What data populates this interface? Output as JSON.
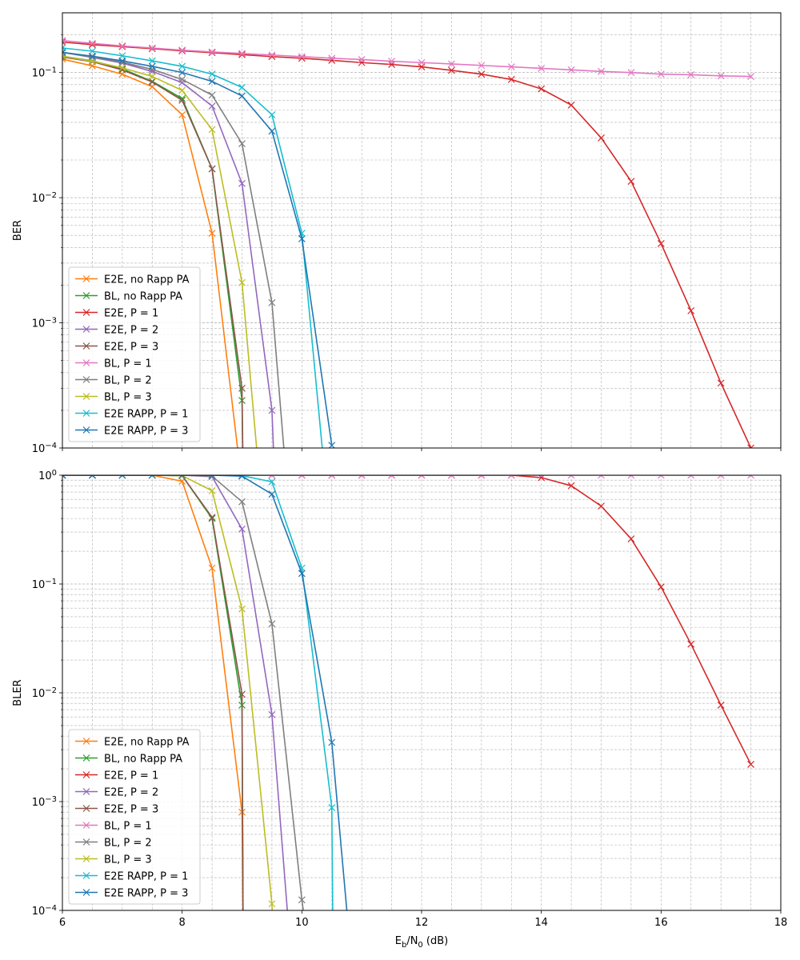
{
  "colors": {
    "e2e_no_rapp": "#ff7f0e",
    "bl_no_rapp": "#2ca02c",
    "e2e_p1": "#d62728",
    "e2e_p2": "#9467bd",
    "e2e_p3": "#8c564b",
    "bl_p1": "#e377c2",
    "bl_p2": "#7f7f7f",
    "bl_p3": "#bcbd22",
    "rapp_p1": "#17becf",
    "rapp_p3": "#1f77b4"
  },
  "chart_data": [
    {
      "type": "line",
      "scale_y": "log",
      "xlim": [
        6,
        18
      ],
      "ylim": [
        0.0001,
        0.3
      ],
      "xlabel": "",
      "ylabel": "BER",
      "grid": true,
      "legend_placement": "lower-left",
      "x_ticks": [
        6,
        8,
        10,
        12,
        14,
        16,
        18
      ],
      "x_tick_labels": [
        "",
        "",
        "",
        "",
        "",
        "",
        ""
      ],
      "y_ticks": [
        0.0001,
        0.001,
        0.01,
        0.1
      ],
      "y_tick_labels": [
        "10^{-4}",
        "10^{-3}",
        "10^{-2}",
        "10^{-1}"
      ],
      "series": [
        {
          "name": "E2E, no Rapp PA",
          "color_key": "e2e_no_rapp",
          "x": [
            6,
            6.5,
            7,
            7.5,
            8,
            8.5,
            9
          ],
          "y": [
            0.128,
            0.113,
            0.097,
            0.077,
            0.046,
            0.0052,
            5e-05
          ]
        },
        {
          "name": "BL, no Rapp PA",
          "color_key": "bl_no_rapp",
          "x": [
            6,
            6.5,
            7,
            7.5,
            8,
            8.5,
            9,
            9.02
          ],
          "y": [
            0.135,
            0.124,
            0.107,
            0.085,
            0.062,
            0.017,
            0.00024,
            5e-05
          ]
        },
        {
          "name": "E2E, P = 1",
          "color_key": "e2e_p1",
          "x": [
            6,
            6.5,
            7,
            7.5,
            8,
            8.5,
            9,
            9.5,
            10,
            10.5,
            11,
            11.5,
            12,
            12.5,
            13,
            13.5,
            14,
            14.5,
            15,
            15.5,
            16,
            16.5,
            17,
            17.5
          ],
          "y": [
            0.175,
            0.167,
            0.161,
            0.155,
            0.149,
            0.144,
            0.139,
            0.134,
            0.13,
            0.125,
            0.12,
            0.116,
            0.111,
            0.104,
            0.097,
            0.088,
            0.074,
            0.055,
            0.03,
            0.0135,
            0.0043,
            0.00125,
            0.00033,
            0.0001
          ]
        },
        {
          "name": "E2E, P = 2",
          "color_key": "e2e_p2",
          "x": [
            6,
            6.5,
            7,
            7.5,
            8,
            8.5,
            9,
            9.5,
            9.55
          ],
          "y": [
            0.145,
            0.132,
            0.119,
            0.102,
            0.083,
            0.054,
            0.013,
            0.0002,
            5e-05
          ]
        },
        {
          "name": "E2E, P = 3",
          "color_key": "e2e_p3",
          "x": [
            6,
            6.5,
            7,
            7.5,
            8,
            8.5,
            9,
            9.02
          ],
          "y": [
            0.133,
            0.122,
            0.105,
            0.084,
            0.06,
            0.017,
            0.0003,
            5e-05
          ]
        },
        {
          "name": "BL, P = 1",
          "color_key": "bl_p1",
          "x": [
            6,
            6.5,
            7,
            7.5,
            8,
            8.5,
            9,
            9.5,
            10,
            10.5,
            11,
            11.5,
            12,
            12.5,
            13,
            13.5,
            14,
            14.5,
            15,
            15.5,
            16,
            16.5,
            17,
            17.5
          ],
          "y": [
            0.18,
            0.171,
            0.163,
            0.157,
            0.151,
            0.146,
            0.142,
            0.138,
            0.134,
            0.13,
            0.127,
            0.123,
            0.12,
            0.117,
            0.114,
            0.111,
            0.108,
            0.105,
            0.102,
            0.1,
            0.097,
            0.096,
            0.094,
            0.093
          ]
        },
        {
          "name": "BL, P = 2",
          "color_key": "bl_p2",
          "x": [
            6,
            6.5,
            7,
            7.5,
            8,
            8.5,
            9,
            9.5,
            9.75
          ],
          "y": [
            0.145,
            0.133,
            0.121,
            0.106,
            0.088,
            0.066,
            0.027,
            0.00145,
            5e-05
          ]
        },
        {
          "name": "BL, P = 3",
          "color_key": "bl_p3",
          "x": [
            6,
            6.5,
            7,
            7.5,
            8,
            8.5,
            9,
            9.3
          ],
          "y": [
            0.135,
            0.123,
            0.109,
            0.093,
            0.072,
            0.035,
            0.0021,
            5e-05
          ]
        },
        {
          "name": "E2E RAPP, P = 1",
          "color_key": "rapp_p1",
          "x": [
            6,
            6.5,
            7,
            7.5,
            8,
            8.5,
            9,
            9.5,
            10,
            10.4
          ],
          "y": [
            0.157,
            0.148,
            0.136,
            0.124,
            0.112,
            0.097,
            0.076,
            0.046,
            0.0052,
            5e-05
          ]
        },
        {
          "name": "E2E RAPP, P = 3",
          "color_key": "rapp_p3",
          "x": [
            6,
            6.5,
            7,
            7.5,
            8,
            8.5,
            9,
            9.5,
            10,
            10.5
          ],
          "y": [
            0.145,
            0.135,
            0.124,
            0.112,
            0.1,
            0.085,
            0.065,
            0.034,
            0.0047,
            0.000105
          ]
        }
      ]
    },
    {
      "type": "line",
      "scale_y": "log",
      "xlim": [
        6,
        18
      ],
      "ylim": [
        0.0001,
        1
      ],
      "xlabel": "E_b/N_0 (dB)",
      "ylabel": "BLER",
      "grid": true,
      "legend_placement": "lower-left",
      "x_ticks": [
        6,
        8,
        10,
        12,
        14,
        16,
        18
      ],
      "x_tick_labels": [
        "6",
        "8",
        "10",
        "12",
        "14",
        "16",
        "18"
      ],
      "y_ticks": [
        0.0001,
        0.001,
        0.01,
        0.1,
        1
      ],
      "y_tick_labels": [
        "10^{-4}",
        "10^{-3}",
        "10^{-2}",
        "10^{-1}",
        "10^{0}"
      ],
      "series": [
        {
          "name": "E2E, no Rapp PA",
          "color_key": "e2e_no_rapp",
          "x": [
            6,
            6.5,
            7,
            7.5,
            8,
            8.5,
            9,
            9.02
          ],
          "y": [
            1,
            1,
            1,
            1,
            0.88,
            0.14,
            0.0008,
            5e-05
          ]
        },
        {
          "name": "BL, no Rapp PA",
          "color_key": "bl_no_rapp",
          "x": [
            6,
            6.5,
            7,
            7.5,
            8,
            8.5,
            9,
            9.02
          ],
          "y": [
            1,
            1,
            1,
            1,
            0.99,
            0.4,
            0.0077,
            5e-05
          ]
        },
        {
          "name": "E2E, P = 1",
          "color_key": "e2e_p1",
          "x": [
            6,
            6.5,
            7,
            7.5,
            8,
            8.5,
            9,
            9.5,
            10,
            10.5,
            11,
            11.5,
            12,
            12.5,
            13,
            13.5,
            14,
            14.5,
            15,
            15.5,
            16,
            16.5,
            17,
            17.5
          ],
          "y": [
            1,
            1,
            1,
            1,
            1,
            1,
            1,
            1,
            1,
            1,
            1,
            1,
            1,
            1,
            1,
            1,
            0.95,
            0.8,
            0.52,
            0.26,
            0.094,
            0.028,
            0.0077,
            0.0022
          ]
        },
        {
          "name": "E2E, P = 2",
          "color_key": "e2e_p2",
          "x": [
            6,
            6.5,
            7,
            7.5,
            8,
            8.5,
            9,
            9.5,
            9.8
          ],
          "y": [
            1,
            1,
            1,
            1,
            1,
            0.97,
            0.32,
            0.0063,
            5e-05
          ]
        },
        {
          "name": "E2E, P = 3",
          "color_key": "e2e_p3",
          "x": [
            6,
            6.5,
            7,
            7.5,
            8,
            8.5,
            9,
            9.02
          ],
          "y": [
            1,
            1,
            1,
            1,
            0.99,
            0.41,
            0.0097,
            5e-05
          ]
        },
        {
          "name": "BL, P = 1",
          "color_key": "bl_p1",
          "x": [
            6,
            6.5,
            7,
            7.5,
            8,
            8.5,
            9,
            9.5,
            10,
            10.5,
            11,
            11.5,
            12,
            12.5,
            13,
            13.5,
            14,
            14.5,
            15,
            15.5,
            16,
            16.5,
            17,
            17.5
          ],
          "y": [
            1,
            1,
            1,
            1,
            1,
            1,
            1,
            1,
            1,
            1,
            1,
            1,
            1,
            1,
            1,
            1,
            1,
            1,
            1,
            1,
            1,
            1,
            1,
            1
          ]
        },
        {
          "name": "BL, P = 2",
          "color_key": "bl_p2",
          "x": [
            6,
            6.5,
            7,
            7.5,
            8,
            8.5,
            9,
            9.5,
            10,
            10.1
          ],
          "y": [
            1,
            1,
            1,
            1,
            1,
            0.98,
            0.57,
            0.043,
            0.000125,
            5e-05
          ]
        },
        {
          "name": "BL, P = 3",
          "color_key": "bl_p3",
          "x": [
            6,
            6.5,
            7,
            7.5,
            8,
            8.5,
            9,
            9.5,
            9.52
          ],
          "y": [
            1,
            1,
            1,
            1,
            0.99,
            0.72,
            0.059,
            0.000115,
            5e-05
          ]
        },
        {
          "name": "E2E RAPP, P = 1",
          "color_key": "rapp_p1",
          "x": [
            6,
            6.5,
            7,
            7.5,
            8,
            8.5,
            9,
            9.5,
            10,
            10.5,
            10.52
          ],
          "y": [
            1,
            1,
            1,
            1,
            1,
            1,
            0.99,
            0.87,
            0.14,
            0.00088,
            5e-05
          ]
        },
        {
          "name": "E2E RAPP, P = 3",
          "color_key": "rapp_p3",
          "x": [
            6,
            6.5,
            7,
            7.5,
            8,
            8.5,
            9,
            9.5,
            10,
            10.5,
            10.8
          ],
          "y": [
            1,
            1,
            1,
            1,
            1,
            1,
            0.98,
            0.67,
            0.125,
            0.0035,
            5e-05
          ]
        }
      ]
    }
  ]
}
